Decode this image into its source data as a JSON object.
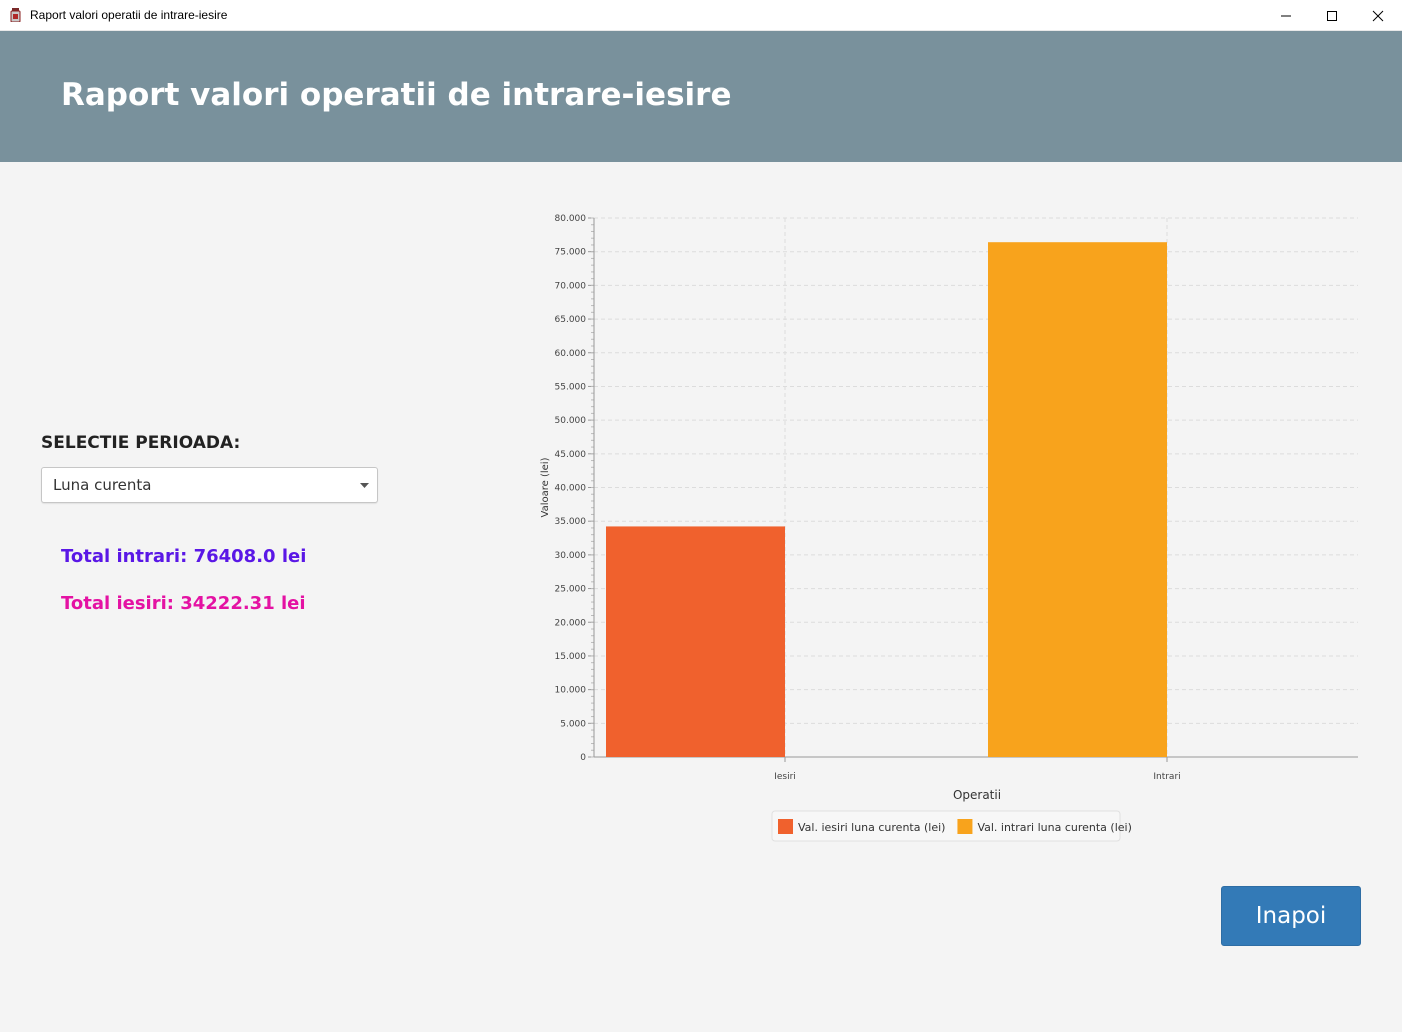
{
  "window": {
    "title": "Raport valori operatii de intrare-iesire"
  },
  "header": {
    "title": "Raport valori operatii de intrare-iesire"
  },
  "filter": {
    "label": "SELECTIE PERIOADA:",
    "selected": "Luna curenta"
  },
  "totals": {
    "intrari": "Total intrari: 76408.0 lei",
    "iesiri": "Total iesiri: 34222.31 lei"
  },
  "actions": {
    "back_label": "Inapoi"
  },
  "colors": {
    "header_bg": "#79919c",
    "iesiri_bar": "#f0612d",
    "intrari_bar": "#f8a31c",
    "intrari_text": "#5a17e6",
    "iesiri_text": "#e412a3",
    "button": "#337ab7"
  },
  "chart_data": {
    "type": "bar",
    "categories": [
      "Iesiri",
      "Intrari"
    ],
    "series": [
      {
        "name": "Val. iesiri luna curenta (lei)",
        "values": [
          34222.31,
          null
        ],
        "color": "#f0612d"
      },
      {
        "name": "Val. intrari luna curenta (lei)",
        "values": [
          null,
          76408.0
        ],
        "color": "#f8a31c"
      }
    ],
    "xlabel": "Operatii",
    "ylabel": "Valoare (lei)",
    "ylim": [
      0,
      80000
    ],
    "yticks": [
      0,
      5000,
      10000,
      15000,
      20000,
      25000,
      30000,
      35000,
      40000,
      45000,
      50000,
      55000,
      60000,
      65000,
      70000,
      75000,
      80000
    ],
    "ytick_labels": [
      "0",
      "5.000",
      "10.000",
      "15.000",
      "20.000",
      "25.000",
      "30.000",
      "35.000",
      "40.000",
      "45.000",
      "50.000",
      "55.000",
      "60.000",
      "65.000",
      "70.000",
      "75.000",
      "80.000"
    ],
    "grid": true,
    "legend": "bottom"
  }
}
